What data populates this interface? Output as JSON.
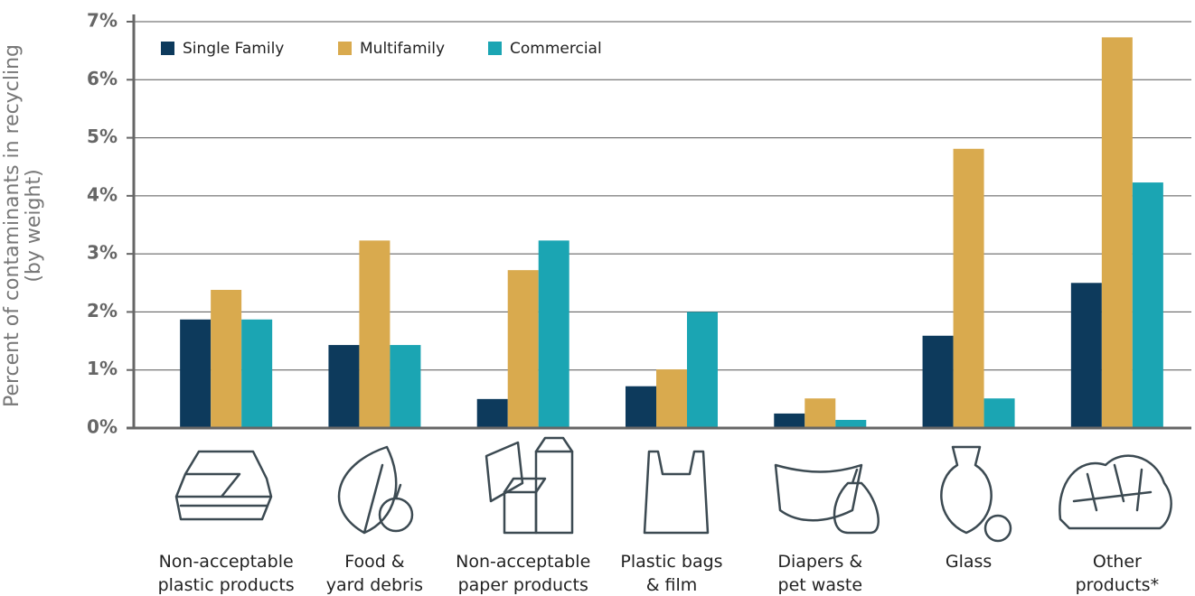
{
  "chart_data": {
    "type": "bar",
    "y_label": [
      "Percent of contaminants in recycling",
      "(by weight)"
    ],
    "categories": [
      [
        "Non-acceptable",
        "plastic products"
      ],
      [
        "Food &",
        "yard debris"
      ],
      [
        "Non-acceptable",
        "paper products"
      ],
      [
        "Plastic bags",
        "& film"
      ],
      [
        "Diapers &",
        "pet waste"
      ],
      [
        "Glass"
      ],
      [
        "Other",
        "products*"
      ]
    ],
    "series": [
      {
        "name": "Single Family",
        "color": "#0d3a5c",
        "values": [
          1.87,
          1.43,
          0.5,
          0.72,
          0.25,
          1.59,
          2.5
        ]
      },
      {
        "name": "Multifamily",
        "color": "#d9aa4e",
        "values": [
          2.38,
          3.23,
          2.72,
          1.01,
          0.51,
          4.81,
          6.73
        ]
      },
      {
        "name": "Commercial",
        "color": "#1ba5b3",
        "values": [
          1.87,
          1.43,
          3.23,
          2.0,
          0.14,
          0.51,
          4.23
        ]
      }
    ],
    "ylim": [
      0,
      7
    ],
    "yticks": [
      {
        "value": 0,
        "label": "0%"
      },
      {
        "value": 1,
        "label": "1%"
      },
      {
        "value": 2,
        "label": "2%"
      },
      {
        "value": 3,
        "label": "3%"
      },
      {
        "value": 4,
        "label": "4%"
      },
      {
        "value": 5,
        "label": "5%"
      },
      {
        "value": 6,
        "label": "6%"
      },
      {
        "value": 7,
        "label": "7%"
      }
    ],
    "grid": true
  }
}
